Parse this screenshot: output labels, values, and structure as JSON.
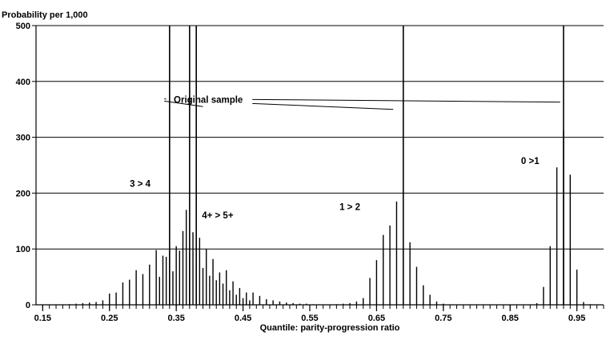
{
  "chart_data": {
    "type": "bar",
    "ylabel": "Probability per 1,000",
    "xlabel": "Quantile: parity-progression ratio",
    "ylim": [
      0,
      500
    ],
    "xlim": [
      0.14,
      0.99
    ],
    "y_ticks": [
      0,
      100,
      200,
      300,
      400,
      500
    ],
    "x_ticks": [
      0.15,
      0.25,
      0.35,
      0.45,
      0.55,
      0.65,
      0.75,
      0.85,
      0.95
    ],
    "x_tick_labels": [
      "0.15",
      "0.25",
      "0.35",
      "0.45",
      "0.55",
      "0.65",
      "0.75",
      "0.85",
      "0.95"
    ],
    "x_minor_step": 0.01,
    "grid": "horizontal",
    "legend": "none",
    "original_sample_lines": [
      0.34,
      0.37,
      0.38,
      0.69,
      0.93
    ],
    "series": [
      {
        "name": "3 > 4",
        "x": [
          0.19,
          0.2,
          0.21,
          0.22,
          0.23,
          0.24,
          0.25,
          0.26,
          0.27,
          0.28,
          0.29,
          0.3,
          0.31,
          0.32,
          0.33,
          0.34,
          0.35,
          0.36,
          0.37,
          0.38,
          0.39,
          0.4,
          0.41,
          0.42,
          0.43,
          0.44,
          0.45,
          0.46
        ],
        "values": [
          1,
          2,
          3,
          4,
          5,
          8,
          20,
          22,
          40,
          45,
          62,
          55,
          72,
          98,
          88,
          98,
          105,
          132,
          92,
          75,
          66,
          52,
          44,
          38,
          26,
          18,
          12,
          8
        ]
      },
      {
        "name": "4+ > 5+",
        "x": [
          0.325,
          0.335,
          0.345,
          0.355,
          0.365,
          0.375,
          0.385,
          0.395,
          0.405,
          0.415,
          0.425,
          0.435,
          0.445,
          0.455,
          0.465,
          0.475,
          0.485,
          0.495,
          0.505,
          0.515,
          0.525,
          0.535,
          0.545,
          0.555
        ],
        "values": [
          50,
          86,
          60,
          97,
          170,
          130,
          120,
          100,
          82,
          58,
          62,
          42,
          30,
          22,
          22,
          16,
          10,
          8,
          6,
          4,
          3,
          2,
          2,
          1
        ]
      },
      {
        "name": "1 > 2",
        "x": [
          0.59,
          0.6,
          0.61,
          0.62,
          0.63,
          0.64,
          0.65,
          0.66,
          0.67,
          0.68,
          0.69,
          0.7,
          0.71,
          0.72,
          0.73,
          0.74,
          0.75
        ],
        "values": [
          1,
          2,
          3,
          6,
          12,
          48,
          80,
          125,
          142,
          185,
          158,
          112,
          68,
          35,
          18,
          6,
          2
        ]
      },
      {
        "name": "0 >1",
        "x": [
          0.89,
          0.9,
          0.91,
          0.92,
          0.93,
          0.94,
          0.95,
          0.96,
          0.97
        ],
        "values": [
          3,
          32,
          105,
          246,
          312,
          233,
          63,
          5,
          1
        ]
      }
    ],
    "annotations": [
      {
        "text": "Original sample",
        "x": 0.398,
        "y": 362
      },
      {
        "text": "3 > 4",
        "x": 0.296,
        "y": 211
      },
      {
        "text": "4+ > 5+",
        "x": 0.412,
        "y": 155
      },
      {
        "text": "1 > 2",
        "x": 0.61,
        "y": 170
      },
      {
        "text": "0 >1",
        "x": 0.88,
        "y": 252
      }
    ]
  }
}
